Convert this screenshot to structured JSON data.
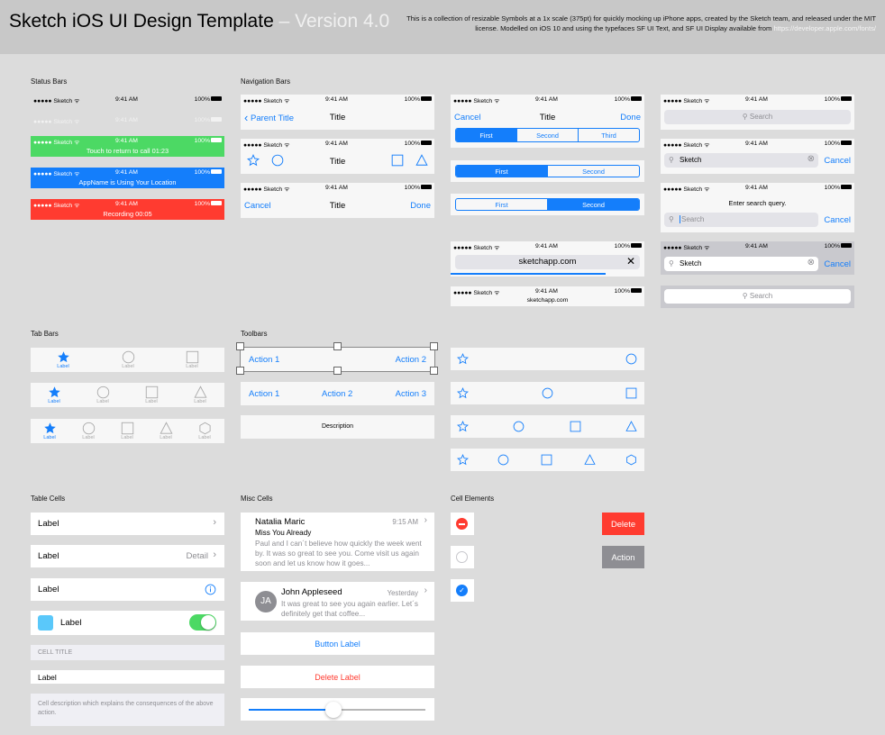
{
  "header": {
    "title": "Sketch iOS UI Design Template",
    "version": " – Version 4.0",
    "description": "This is a collection of resizable Symbols at a 1x scale (375pt) for quickly mocking up iPhone apps, created by the Sketch team, and released under the MIT license. Modelled on iOS 10 and using the typefaces SF UI Text, and SF UI Display available from ",
    "link": "https://developer.apple.com/fonts/"
  },
  "sections": {
    "status_bars": "Status Bars",
    "navigation_bars": "Navigation Bars",
    "tab_bars": "Tab Bars",
    "toolbars": "Toolbars",
    "table_cells": "Table Cells",
    "misc_cells": "Misc Cells",
    "cell_elements": "Cell Elements"
  },
  "status": {
    "carrier": "●●●●● Sketch ᯤ",
    "time": "9:41 AM",
    "battery": "100%",
    "call_text": "Touch to return to call  01:23",
    "location_text": "AppName is Using Your Location",
    "recording_text": "Recording  00:05"
  },
  "colors": {
    "green": "#4cd964",
    "blue": "#147efb",
    "red": "#ff3b30"
  },
  "nav": {
    "back": "Parent Title",
    "title": "Title",
    "cancel": "Cancel",
    "done": "Done",
    "seg3": [
      "First",
      "Second",
      "Third"
    ],
    "seg2": [
      "First",
      "Second"
    ],
    "url": "sketchapp.com",
    "url_small": "sketchapp.com",
    "search_placeholder": "Search",
    "search_value": "Sketch",
    "search_prompt": "Enter search query.",
    "search_cancel": "Cancel"
  },
  "tabs": {
    "label": "Label"
  },
  "toolbars": {
    "action1": "Action 1",
    "action2": "Action 2",
    "action3": "Action 3",
    "description": "Description"
  },
  "table": {
    "label": "Label",
    "detail": "Detail",
    "cell_title": "CELL TITLE",
    "cell_description": "Cell description which explains the consequences of the above action."
  },
  "misc": {
    "msg1": {
      "name": "Natalia Maric",
      "time": "9:15 AM",
      "subject": "Miss You Already",
      "body": "Paul and I can´t believe how quickly the week went by. It was so great to see you. Come visit us again soon and let us know how it goes..."
    },
    "msg2": {
      "initials": "JA",
      "name": "John Appleseed",
      "time": "Yesterday",
      "body": "It was great to see you again earlier. Let´s definitely get that coffee..."
    },
    "button_label": "Button Label",
    "delete_label": "Delete Label",
    "slider_value": 0.48
  },
  "elements": {
    "delete": "Delete",
    "action": "Action"
  }
}
